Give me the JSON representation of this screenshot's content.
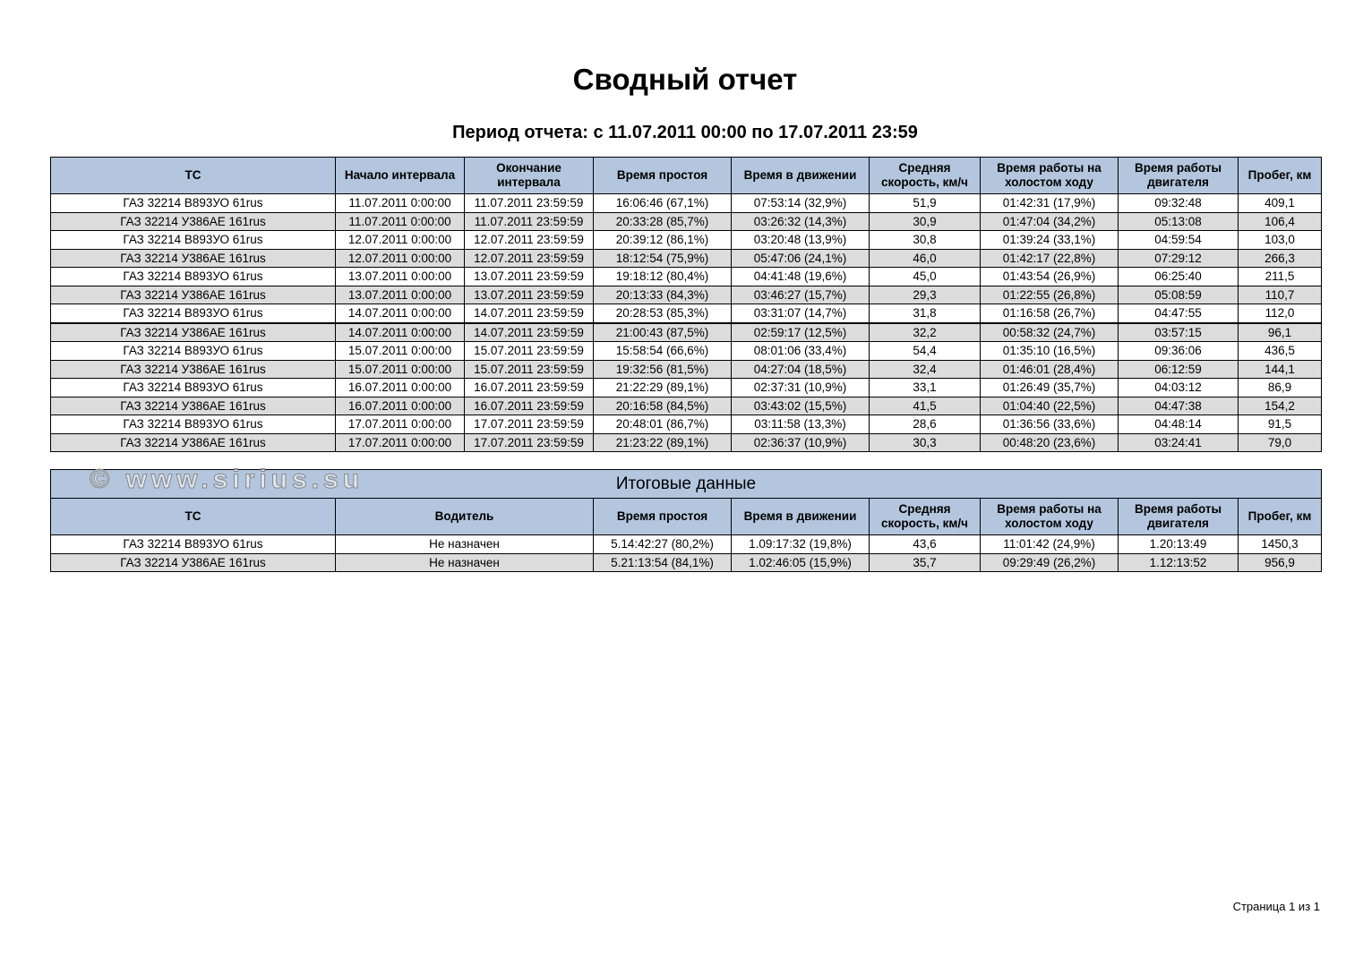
{
  "title": "Сводный отчет",
  "period": "Период отчета: с 11.07.2011 00:00 по 17.07.2011 23:59",
  "detail_table": {
    "headers": [
      "ТС",
      "Начало интервала",
      "Окончание интервала",
      "Время простоя",
      "Время в движении",
      "Средняя скорость, км/ч",
      "Время работы на холостом ходу",
      "Время работы двигателя",
      "Пробег, км"
    ],
    "rows": [
      [
        "ГАЗ 32214 В893УО 61rus",
        "11.07.2011 0:00:00",
        "11.07.2011 23:59:59",
        "16:06:46 (67,1%)",
        "07:53:14 (32,9%)",
        "51,9",
        "01:42:31 (17,9%)",
        "09:32:48",
        "409,1"
      ],
      [
        "ГАЗ 32214 У386АЕ 161rus",
        "11.07.2011 0:00:00",
        "11.07.2011 23:59:59",
        "20:33:28 (85,7%)",
        "03:26:32 (14,3%)",
        "30,9",
        "01:47:04 (34,2%)",
        "05:13:08",
        "106,4"
      ],
      [
        "ГАЗ 32214 В893УО 61rus",
        "12.07.2011 0:00:00",
        "12.07.2011 23:59:59",
        "20:39:12 (86,1%)",
        "03:20:48 (13,9%)",
        "30,8",
        "01:39:24 (33,1%)",
        "04:59:54",
        "103,0"
      ],
      [
        "ГАЗ 32214 У386АЕ 161rus",
        "12.07.2011 0:00:00",
        "12.07.2011 23:59:59",
        "18:12:54 (75,9%)",
        "05:47:06 (24,1%)",
        "46,0",
        "01:42:17 (22,8%)",
        "07:29:12",
        "266,3"
      ],
      [
        "ГАЗ 32214 В893УО 61rus",
        "13.07.2011 0:00:00",
        "13.07.2011 23:59:59",
        "19:18:12 (80,4%)",
        "04:41:48 (19,6%)",
        "45,0",
        "01:43:54 (26,9%)",
        "06:25:40",
        "211,5"
      ],
      [
        "ГАЗ 32214 У386АЕ 161rus",
        "13.07.2011 0:00:00",
        "13.07.2011 23:59:59",
        "20:13:33 (84,3%)",
        "03:46:27 (15,7%)",
        "29,3",
        "01:22:55 (26,8%)",
        "05:08:59",
        "110,7"
      ],
      [
        "ГАЗ 32214 В893УО 61rus",
        "14.07.2011 0:00:00",
        "14.07.2011 23:59:59",
        "20:28:53 (85,3%)",
        "03:31:07 (14,7%)",
        "31,8",
        "01:16:58 (26,7%)",
        "04:47:55",
        "112,0"
      ],
      [
        "ГАЗ 32214 У386АЕ 161rus",
        "14.07.2011 0:00:00",
        "14.07.2011 23:59:59",
        "21:00:43 (87,5%)",
        "02:59:17 (12,5%)",
        "32,2",
        "00:58:32 (24,7%)",
        "03:57:15",
        "96,1"
      ],
      [
        "ГАЗ 32214 В893УО 61rus",
        "15.07.2011 0:00:00",
        "15.07.2011 23:59:59",
        "15:58:54 (66,6%)",
        "08:01:06 (33,4%)",
        "54,4",
        "01:35:10 (16,5%)",
        "09:36:06",
        "436,5"
      ],
      [
        "ГАЗ 32214 У386АЕ 161rus",
        "15.07.2011 0:00:00",
        "15.07.2011 23:59:59",
        "19:32:56 (81,5%)",
        "04:27:04 (18,5%)",
        "32,4",
        "01:46:01 (28,4%)",
        "06:12:59",
        "144,1"
      ],
      [
        "ГАЗ 32214 В893УО 61rus",
        "16.07.2011 0:00:00",
        "16.07.2011 23:59:59",
        "21:22:29 (89,1%)",
        "02:37:31 (10,9%)",
        "33,1",
        "01:26:49 (35,7%)",
        "04:03:12",
        "86,9"
      ],
      [
        "ГАЗ 32214 У386АЕ 161rus",
        "16.07.2011 0:00:00",
        "16.07.2011 23:59:59",
        "20:16:58 (84,5%)",
        "03:43:02 (15,5%)",
        "41,5",
        "01:04:40 (22,5%)",
        "04:47:38",
        "154,2"
      ],
      [
        "ГАЗ 32214 В893УО 61rus",
        "17.07.2011 0:00:00",
        "17.07.2011 23:59:59",
        "20:48:01 (86,7%)",
        "03:11:58 (13,3%)",
        "28,6",
        "01:36:56 (33,6%)",
        "04:48:14",
        "91,5"
      ],
      [
        "ГАЗ 32214 У386АЕ 161rus",
        "17.07.2011 0:00:00",
        "17.07.2011 23:59:59",
        "21:23:22 (89,1%)",
        "02:36:37 (10,9%)",
        "30,3",
        "00:48:20 (23,6%)",
        "03:24:41",
        "79,0"
      ]
    ]
  },
  "summary_table": {
    "title": "Итоговые данные",
    "headers": [
      "ТС",
      "Водитель",
      "Время простоя",
      "Время в движении",
      "Средняя скорость, км/ч",
      "Время работы на холостом ходу",
      "Время работы двигателя",
      "Пробег, км"
    ],
    "rows": [
      [
        "ГАЗ 32214 В893УО 61rus",
        "Не назначен",
        "5.14:42:27 (80,2%)",
        "1.09:17:32 (19,8%)",
        "43,6",
        "11:01:42 (24,9%)",
        "1.20:13:49",
        "1450,3"
      ],
      [
        "ГАЗ 32214 У386АЕ 161rus",
        "Не назначен",
        "5.21:13:54 (84,1%)",
        "1.02:46:05 (15,9%)",
        "35,7",
        "09:29:49 (26,2%)",
        "1.12:13:52",
        "956,9"
      ]
    ]
  },
  "watermark": "© www.sirius.su",
  "pager": "Страница 1 из 1",
  "colors": {
    "header_bg": "#b3c6de",
    "alt_row_bg": "#dcdcdc"
  }
}
